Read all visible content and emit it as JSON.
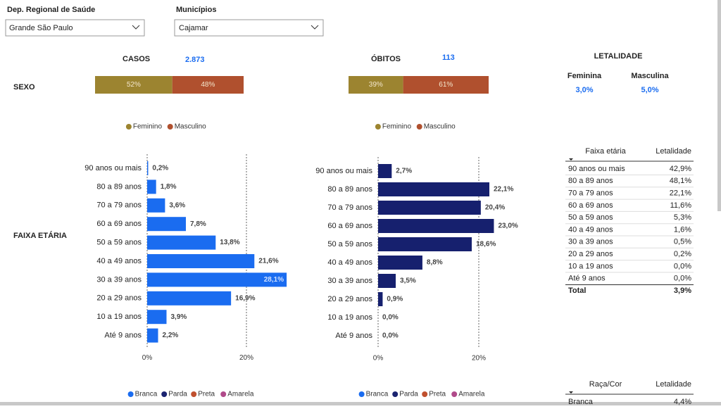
{
  "filters": [
    {
      "label": "Dep. Regional de Saúde",
      "value": "Grande São Paulo"
    },
    {
      "label": "Municípios",
      "value": "Cajamar"
    }
  ],
  "casos": {
    "title": "CASOS",
    "total": "2.873"
  },
  "obitos": {
    "title": "ÓBITOS",
    "total": "113"
  },
  "sections": {
    "sexo": "SEXO",
    "faixa": "FAIXA ETÁRIA"
  },
  "letalidade": {
    "title": "LETALIDADE",
    "feminina_label": "Feminina",
    "feminina": "3,0%",
    "masculina_label": "Masculina",
    "masculina": "5,0%"
  },
  "table": {
    "header": [
      "Faixa etária",
      "Letalidade"
    ],
    "rows": [
      [
        "90 anos ou mais",
        "42,9%"
      ],
      [
        "80 a 89 anos",
        "48,1%"
      ],
      [
        "70 a 79 anos",
        "22,1%"
      ],
      [
        "60 a 69 anos",
        "11,6%"
      ],
      [
        "50 a 59 anos",
        "5,3%"
      ],
      [
        "40 a 49 anos",
        "1,6%"
      ],
      [
        "30 a 39 anos",
        "0,5%"
      ],
      [
        "20 a 29 anos",
        "0,2%"
      ],
      [
        "10 a 19 anos",
        "0,0%"
      ],
      [
        "Até 9 anos",
        "0,0%"
      ]
    ],
    "total": [
      "Total",
      "3,9%"
    ]
  },
  "table2": {
    "header": [
      "Raça/Cor",
      "Letalidade"
    ],
    "rows": [
      [
        "Branca",
        "4,4%"
      ]
    ]
  },
  "chart_data": [
    {
      "type": "stacked-bar",
      "xlim": [
        0,
        100
      ],
      "series": [
        {
          "name": "Feminino",
          "color": "#9c8430",
          "values": [
            52
          ],
          "value_labels": [
            "52%"
          ]
        },
        {
          "name": "Masculino",
          "color": "#b0502e",
          "values": [
            48
          ],
          "value_labels": [
            "48%"
          ]
        }
      ]
    },
    {
      "type": "stacked-bar",
      "xlim": [
        0,
        100
      ],
      "series": [
        {
          "name": "Feminino",
          "color": "#9c8430",
          "values": [
            39
          ],
          "value_labels": [
            "39%"
          ]
        },
        {
          "name": "Masculino",
          "color": "#b0502e",
          "values": [
            61
          ],
          "value_labels": [
            "61%"
          ]
        }
      ]
    },
    {
      "type": "hbar",
      "color": "#1a6cf0",
      "categories": [
        "90 anos ou mais",
        "80 a 89 anos",
        "70 a 79 anos",
        "60 a 69 anos",
        "50 a 59 anos",
        "40 a 49 anos",
        "30 a 39 anos",
        "20 a 29 anos",
        "10 a 19 anos",
        "Até 9 anos"
      ],
      "values": [
        0.2,
        1.8,
        3.6,
        7.8,
        13.8,
        21.6,
        28.1,
        16.9,
        3.9,
        2.2
      ],
      "value_labels": [
        "0,2%",
        "1,8%",
        "3,6%",
        "7,8%",
        "13,8%",
        "21,6%",
        "28,1%",
        "16,9%",
        "3,9%",
        "2,2%"
      ],
      "xlim": [
        0,
        30
      ],
      "xticks": [
        {
          "value": 0,
          "label": "0%"
        },
        {
          "value": 20,
          "label": "20%"
        }
      ],
      "legend": [
        {
          "name": "Branca",
          "color": "#1a6cf0"
        },
        {
          "name": "Parda",
          "color": "#1a2370"
        },
        {
          "name": "Preta",
          "color": "#c0502e"
        },
        {
          "name": "Amarela",
          "color": "#b04a8a"
        }
      ]
    },
    {
      "type": "hbar",
      "color": "#16206e",
      "categories": [
        "90 anos ou mais",
        "80 a 89 anos",
        "70 a 79 anos",
        "60 a 69 anos",
        "50 a 59 anos",
        "40 a 49 anos",
        "30 a 39 anos",
        "20 a 29 anos",
        "10 a 19 anos",
        "Até 9 anos"
      ],
      "values": [
        2.7,
        22.1,
        20.4,
        23.0,
        18.6,
        8.8,
        3.5,
        0.9,
        0.0,
        0.0
      ],
      "value_labels": [
        "2,7%",
        "22,1%",
        "20,4%",
        "23,0%",
        "18,6%",
        "8,8%",
        "3,5%",
        "0,9%",
        "0,0%",
        "0,0%"
      ],
      "xlim": [
        0,
        30
      ],
      "xticks": [
        {
          "value": 0,
          "label": "0%"
        },
        {
          "value": 20,
          "label": "20%"
        }
      ],
      "legend": [
        {
          "name": "Branca",
          "color": "#1a6cf0"
        },
        {
          "name": "Parda",
          "color": "#1a2370"
        },
        {
          "name": "Preta",
          "color": "#c0502e"
        },
        {
          "name": "Amarela",
          "color": "#b04a8a"
        }
      ]
    }
  ]
}
